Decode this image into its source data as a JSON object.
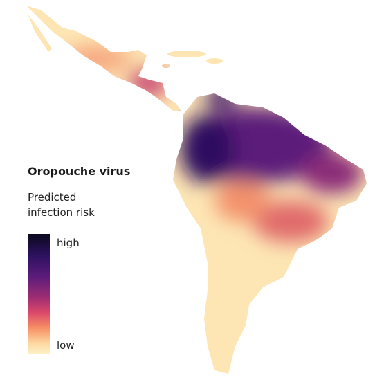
{
  "title": "Oropouche virus",
  "subtitle": "Predicted infection risk",
  "legend": {
    "high": "high",
    "low": "low"
  }
}
